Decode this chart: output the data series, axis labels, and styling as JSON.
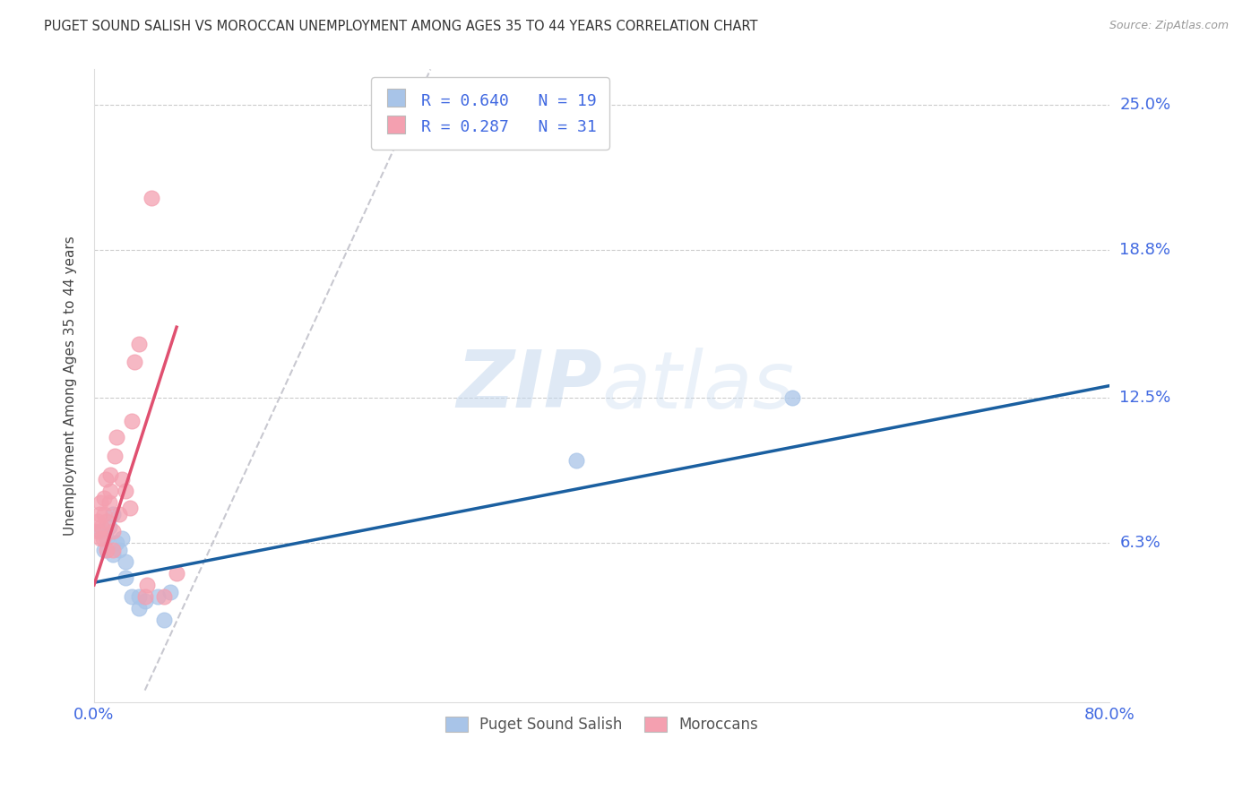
{
  "title": "PUGET SOUND SALISH VS MOROCCAN UNEMPLOYMENT AMONG AGES 35 TO 44 YEARS CORRELATION CHART",
  "source": "Source: ZipAtlas.com",
  "ylabel": "Unemployment Among Ages 35 to 44 years",
  "xlim": [
    0.0,
    0.8
  ],
  "ylim": [
    -0.005,
    0.265
  ],
  "yticks": [
    0.063,
    0.125,
    0.188,
    0.25
  ],
  "ytick_labels": [
    "6.3%",
    "12.5%",
    "18.8%",
    "25.0%"
  ],
  "color_blue": "#A8C4E8",
  "color_pink": "#F4A0B0",
  "color_blue_line": "#1A5FA0",
  "color_pink_line": "#E05070",
  "color_diag": "#C8C8D0",
  "color_axis_text": "#4169E1",
  "color_legend_text": "#4169E1",
  "watermark_zip": "ZIP",
  "watermark_atlas": "atlas",
  "legend_label1": "Puget Sound Salish",
  "legend_label2": "Moroccans",
  "blue_scatter_x": [
    0.005,
    0.008,
    0.01,
    0.012,
    0.015,
    0.015,
    0.018,
    0.02,
    0.022,
    0.025,
    0.025,
    0.03,
    0.035,
    0.035,
    0.04,
    0.05,
    0.055,
    0.06,
    0.38,
    0.55
  ],
  "blue_scatter_y": [
    0.068,
    0.06,
    0.065,
    0.07,
    0.058,
    0.075,
    0.063,
    0.06,
    0.065,
    0.055,
    0.048,
    0.04,
    0.04,
    0.035,
    0.038,
    0.04,
    0.03,
    0.042,
    0.098,
    0.125
  ],
  "pink_scatter_x": [
    0.003,
    0.003,
    0.004,
    0.005,
    0.005,
    0.006,
    0.007,
    0.008,
    0.008,
    0.009,
    0.01,
    0.01,
    0.012,
    0.013,
    0.013,
    0.015,
    0.015,
    0.016,
    0.018,
    0.02,
    0.022,
    0.025,
    0.028,
    0.03,
    0.032,
    0.035,
    0.04,
    0.042,
    0.045,
    0.055,
    0.065
  ],
  "pink_scatter_y": [
    0.068,
    0.072,
    0.075,
    0.08,
    0.065,
    0.07,
    0.065,
    0.075,
    0.082,
    0.09,
    0.06,
    0.072,
    0.08,
    0.085,
    0.092,
    0.06,
    0.068,
    0.1,
    0.108,
    0.075,
    0.09,
    0.085,
    0.078,
    0.115,
    0.14,
    0.148,
    0.04,
    0.045,
    0.21,
    0.04,
    0.05
  ],
  "blue_line_x": [
    0.0,
    0.8
  ],
  "blue_line_y": [
    0.046,
    0.13
  ],
  "pink_line_x": [
    0.0,
    0.065
  ],
  "pink_line_y": [
    0.045,
    0.155
  ],
  "diag_line_x": [
    0.04,
    0.265
  ],
  "diag_line_y": [
    0.0,
    0.265
  ]
}
